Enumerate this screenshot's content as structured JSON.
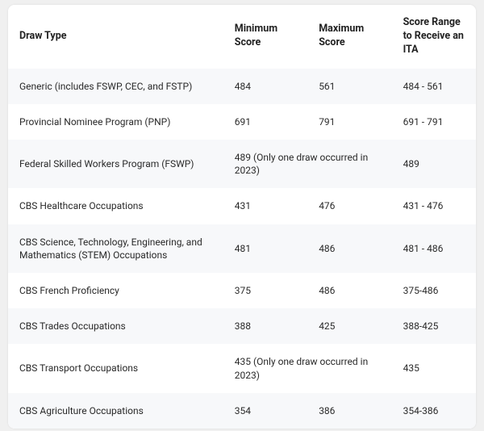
{
  "table": {
    "columns": [
      "Draw Type",
      "Minimum Score",
      "Maximum Score",
      "Score Range to Receive an ITA"
    ],
    "rows": [
      {
        "type": "Generic (includes FSWP, CEC, and FSTP)",
        "min": "484",
        "max": "561",
        "range": "484 - 561",
        "merged": false
      },
      {
        "type": "Provincial Nominee Program (PNP)",
        "min": "691",
        "max": "791",
        "range": "691 - 791",
        "merged": false
      },
      {
        "type": "Federal Skilled Workers Program (FSWP)",
        "merged_text": "489 (Only one draw occurred in 2023)",
        "range": "489",
        "merged": true
      },
      {
        "type": "CBS Healthcare Occupations",
        "min": "431",
        "max": "476",
        "range": "431 - 476",
        "merged": false
      },
      {
        "type": "CBS Science, Technology, Engineering, and Mathematics (STEM) Occupations",
        "min": "481",
        "max": "486",
        "range": "481 - 486",
        "merged": false
      },
      {
        "type": "CBS French Proficiency",
        "min": "375",
        "max": "486",
        "range": "375-486",
        "merged": false
      },
      {
        "type": "CBS Trades Occupations",
        "min": "388",
        "max": "425",
        "range": "388-425",
        "merged": false
      },
      {
        "type": "CBS Transport Occupations",
        "merged_text": "435 (Only one draw occurred in 2023)",
        "range": "435",
        "merged": true
      },
      {
        "type": "CBS Agriculture Occupations",
        "min": "354",
        "max": "386",
        "range": "354-386",
        "merged": false
      }
    ],
    "style": {
      "header_bg": "#ffffff",
      "row_odd_bg": "#f7f8fa",
      "row_even_bg": "#ffffff",
      "text_color": "#2a2a2a",
      "font_size_header": 12.5,
      "font_size_cell": 12,
      "border_radius": 8
    }
  }
}
